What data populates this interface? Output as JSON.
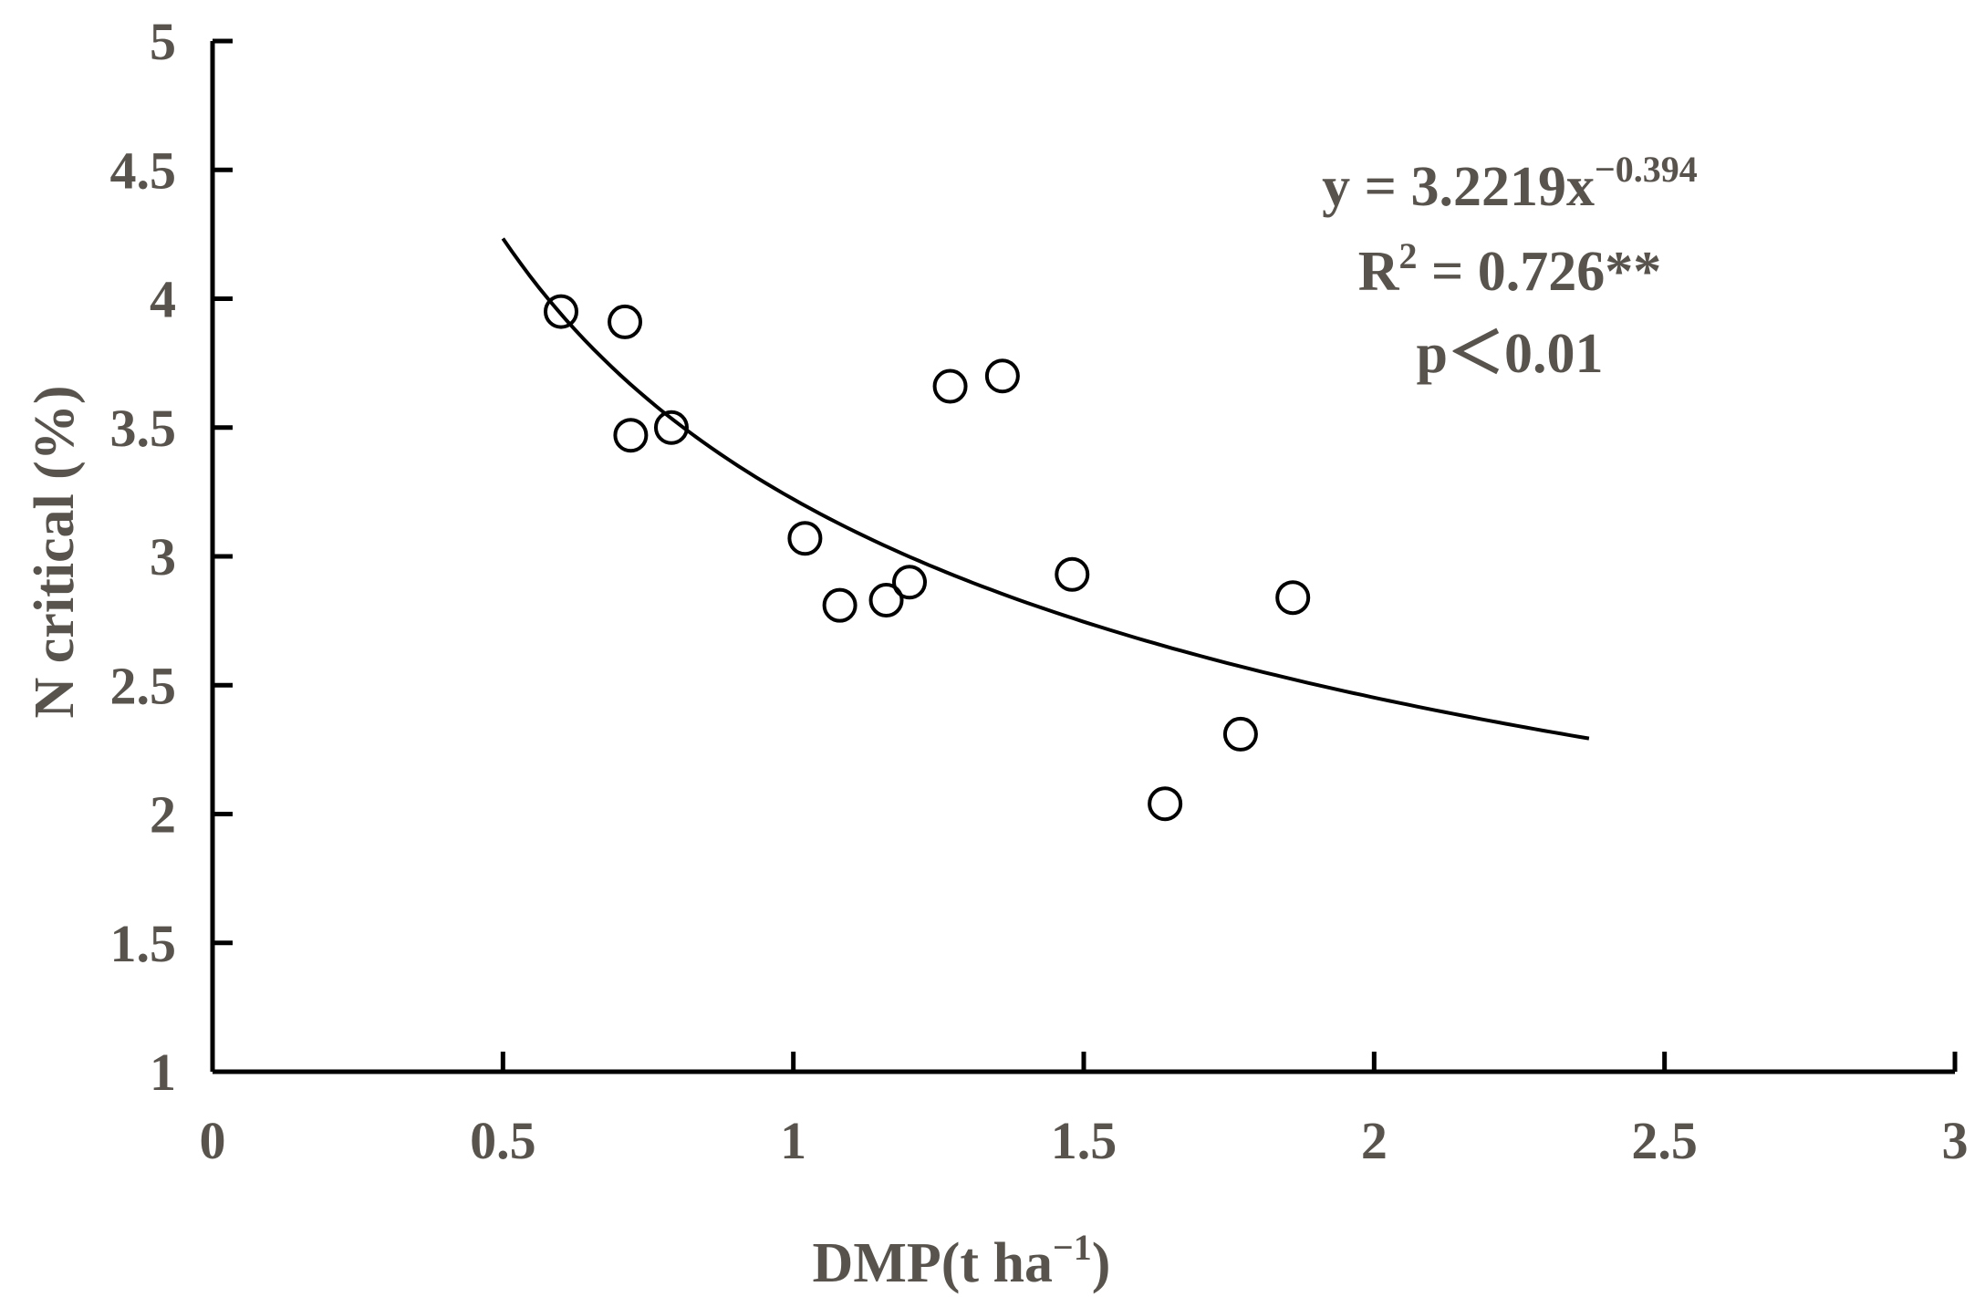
{
  "chart_data": {
    "type": "scatter",
    "xlabel": "DMP(t ha",
    "xlabel_sup": "−1",
    "xlabel_close": ")",
    "ylabel": "N critical (%)",
    "xlim": [
      0,
      3
    ],
    "ylim": [
      1,
      5
    ],
    "xticks": [
      "0",
      "0.5",
      "1",
      "1.5",
      "2",
      "2.5",
      "3"
    ],
    "yticks": [
      "1",
      "1.5",
      "2",
      "2.5",
      "3",
      "3.5",
      "4",
      "4.5",
      "5"
    ],
    "grid": false,
    "points": [
      {
        "x": 0.6,
        "y": 3.95
      },
      {
        "x": 0.71,
        "y": 3.91
      },
      {
        "x": 0.72,
        "y": 3.47
      },
      {
        "x": 0.79,
        "y": 3.5
      },
      {
        "x": 1.02,
        "y": 3.07
      },
      {
        "x": 1.08,
        "y": 2.81
      },
      {
        "x": 1.16,
        "y": 2.83
      },
      {
        "x": 1.2,
        "y": 2.9
      },
      {
        "x": 1.27,
        "y": 3.66
      },
      {
        "x": 1.36,
        "y": 3.7
      },
      {
        "x": 1.48,
        "y": 2.93
      },
      {
        "x": 1.64,
        "y": 2.04
      },
      {
        "x": 1.77,
        "y": 2.31
      },
      {
        "x": 1.86,
        "y": 2.84
      }
    ],
    "fit": {
      "a": 3.2219,
      "b": -0.394,
      "x_range": [
        0.5,
        2.37
      ]
    },
    "annotation": {
      "eq_prefix": "y = 3.2219x",
      "eq_exp": "−0.394",
      "r2_prefix": "R",
      "r2_sup": "2",
      "r2_suffix": " = 0.726**",
      "p_text": "p＜0.01"
    }
  }
}
